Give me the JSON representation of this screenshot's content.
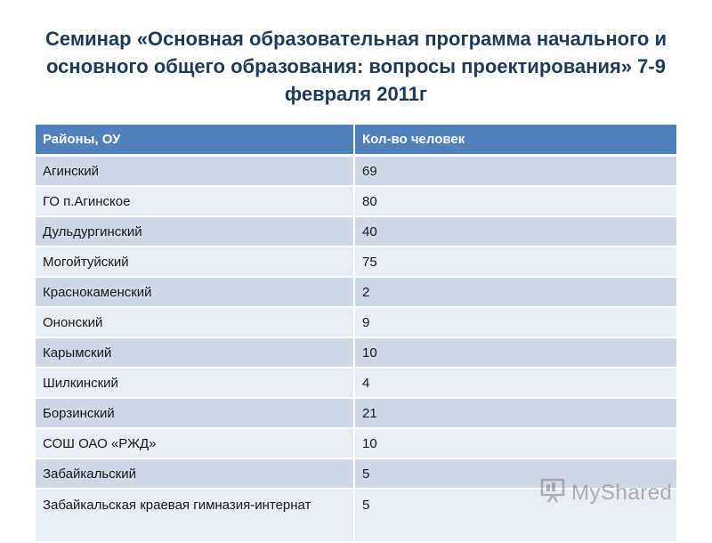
{
  "title": "Семинар «Основная образовательная программа начального и основного общего образования: вопросы проектирования» 7-9 февраля 2011г",
  "table": {
    "headers": [
      "Районы, ОУ",
      "Кол-во человек"
    ],
    "rows": [
      [
        "Агинский",
        "69"
      ],
      [
        "ГО п.Агинское",
        "80"
      ],
      [
        "Дульдургинский",
        "40"
      ],
      [
        "Могойтуйский",
        "75"
      ],
      [
        "Краснокаменский",
        "2"
      ],
      [
        "Ононский",
        "9"
      ],
      [
        "Карымский",
        "10"
      ],
      [
        "Шилкинский",
        "4"
      ],
      [
        "Борзинский",
        "21"
      ],
      [
        "СОШ ОАО «РЖД»",
        "10"
      ],
      [
        "Забайкальский",
        "5"
      ],
      [
        "Забайкальская краевая гимназия-интернат",
        "5"
      ]
    ]
  },
  "watermark": {
    "text": "MyShared",
    "icon": "presentation-board-icon"
  },
  "colors": {
    "header_bg": "#4f81bd",
    "row_odd": "#d0d8e8",
    "row_even": "#e9edf4",
    "title": "#1f3a58"
  }
}
